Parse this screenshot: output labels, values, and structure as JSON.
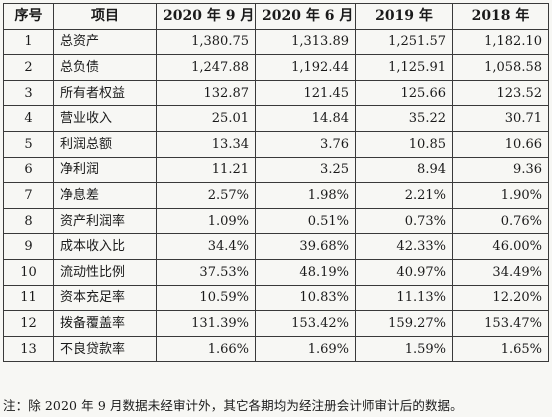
{
  "table": {
    "headers": [
      "序号",
      "项目",
      "2020 年 9 月",
      "2020 年 6 月",
      "2019 年",
      "2018 年"
    ],
    "rows": [
      [
        "1",
        "总资产",
        "1,380.75",
        "1,313.89",
        "1,251.57",
        "1,182.10"
      ],
      [
        "2",
        "总负债",
        "1,247.88",
        "1,192.44",
        "1,125.91",
        "1,058.58"
      ],
      [
        "3",
        "所有者权益",
        "132.87",
        "121.45",
        "125.66",
        "123.52"
      ],
      [
        "4",
        "营业收入",
        "25.01",
        "14.84",
        "35.22",
        "30.71"
      ],
      [
        "5",
        "利润总额",
        "13.34",
        "3.76",
        "10.85",
        "10.66"
      ],
      [
        "6",
        "净利润",
        "11.21",
        "3.25",
        "8.94",
        "9.36"
      ],
      [
        "7",
        "净息差",
        "2.57%",
        "1.98%",
        "2.21%",
        "1.90%"
      ],
      [
        "8",
        "资产利润率",
        "1.09%",
        "0.51%",
        "0.73%",
        "0.76%"
      ],
      [
        "9",
        "成本收入比",
        "34.4%",
        "39.68%",
        "42.33%",
        "46.00%"
      ],
      [
        "10",
        "流动性比例",
        "37.53%",
        "48.19%",
        "40.97%",
        "34.49%"
      ],
      [
        "11",
        "资本充足率",
        "10.59%",
        "10.83%",
        "11.13%",
        "12.20%"
      ],
      [
        "12",
        "拨备覆盖率",
        "131.39%",
        "153.42%",
        "159.27%",
        "153.47%"
      ],
      [
        "13",
        "不良贷款率",
        "1.66%",
        "1.69%",
        "1.59%",
        "1.65%"
      ]
    ]
  },
  "note": "注：除 2020 年 9 月数据未经审计外，其它各期均为经注册会计师审计后的数据。"
}
